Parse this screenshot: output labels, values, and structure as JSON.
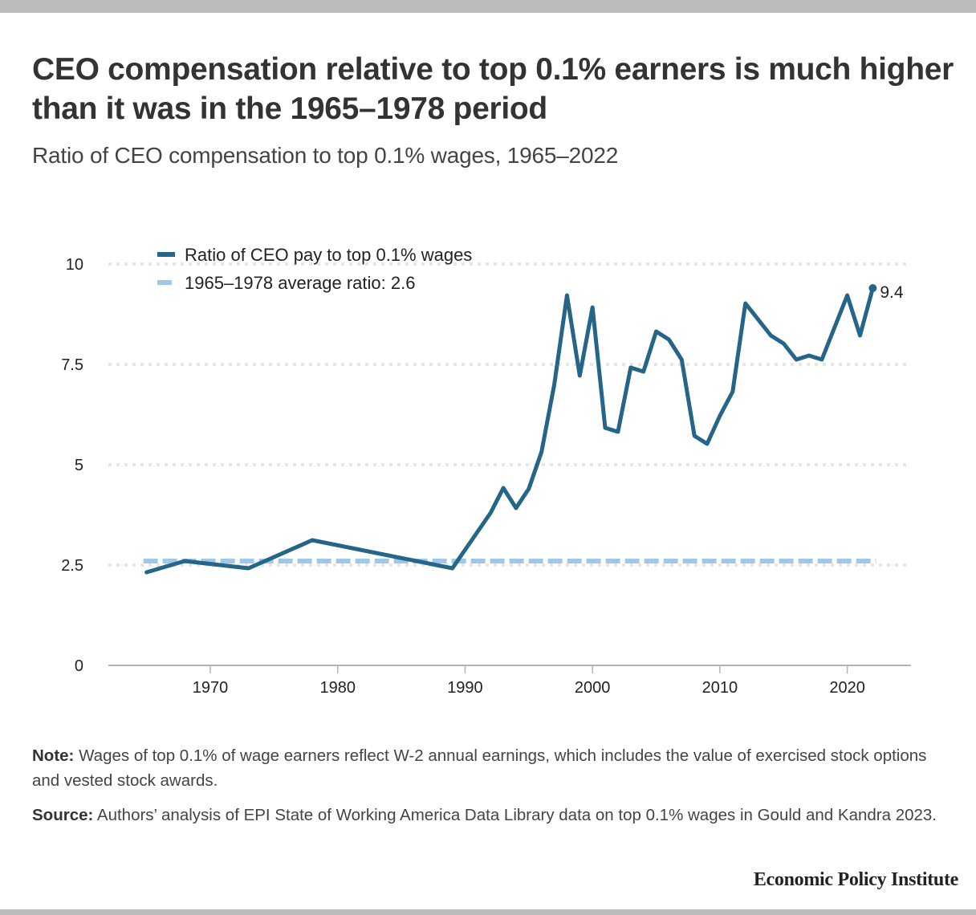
{
  "title": "CEO compensation relative to top 0.1% earners is much higher than it was in the 1965–1978 period",
  "subtitle": "Ratio of CEO compensation to top 0.1% wages, 1965–2022",
  "notes": {
    "note_label": "Note:",
    "note_text": " Wages of top 0.1% of wage earners reflect W-2 annual earnings, which includes the value of exercised stock options and vested stock awards.",
    "source_label": "Source:",
    "source_text": " Authors’ analysis of EPI State of Working America Data Library data on top 0.1% wages in Gould and Kandra 2023."
  },
  "brand": "Economic Policy Institute",
  "colors": {
    "series_main": "#256587",
    "series_average": "#9fc7e7",
    "gridline": "#e6e6e6",
    "axis": "#b3b3b3"
  },
  "chart_data": {
    "type": "line",
    "title": "Ratio of CEO compensation to top 0.1% wages, 1965–2022",
    "xlabel": "",
    "ylabel": "",
    "xlim": [
      1962,
      2025
    ],
    "ylim": [
      0,
      10
    ],
    "x_ticks": [
      1970,
      1980,
      1990,
      2000,
      2010,
      2020
    ],
    "y_ticks": [
      0,
      2.5,
      5,
      7.5,
      10
    ],
    "y_tick_labels": [
      "0",
      "2.5",
      "5",
      "7.5",
      "10"
    ],
    "grid": "horizontal-dotted",
    "legend_position": "top-left",
    "series": [
      {
        "name": "Ratio of CEO pay to top 0.1% wages",
        "style": "solid",
        "x": [
          1965,
          1968,
          1973,
          1978,
          1989,
          1992,
          1993,
          1994,
          1995,
          1996,
          1997,
          1998,
          1999,
          2000,
          2001,
          2002,
          2003,
          2004,
          2005,
          2006,
          2007,
          2008,
          2009,
          2010,
          2011,
          2012,
          2014,
          2015,
          2016,
          2017,
          2018,
          2020,
          2021,
          2022
        ],
        "values": [
          2.32,
          2.6,
          2.42,
          3.12,
          2.42,
          3.8,
          4.42,
          3.92,
          4.4,
          5.32,
          7.0,
          9.22,
          7.22,
          8.92,
          5.92,
          5.82,
          7.42,
          7.32,
          8.32,
          8.12,
          7.62,
          5.72,
          5.52,
          6.22,
          6.82,
          9.02,
          8.22,
          8.02,
          7.62,
          7.72,
          7.62,
          9.22,
          8.22,
          9.4
        ],
        "end_label": "9.4"
      },
      {
        "name": "1965–1978 average ratio: 2.6",
        "style": "dashed",
        "x": [
          1965,
          2022
        ],
        "values": [
          2.6,
          2.6
        ]
      }
    ]
  }
}
